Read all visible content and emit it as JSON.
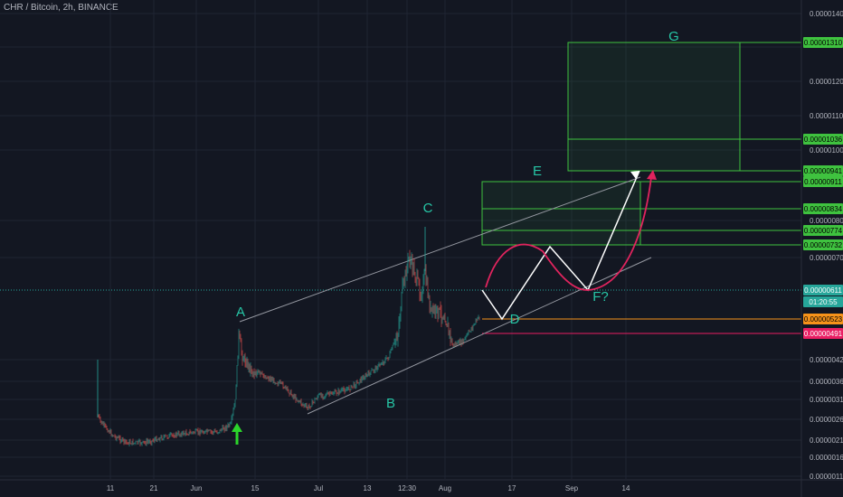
{
  "header": {
    "symbol": "CHR / Bitcoin",
    "interval": "2h",
    "exchange": "BINANCE"
  },
  "colors": {
    "background": "#131722",
    "grid": "#1f2433",
    "axis_text": "#b2b5be",
    "candle_up": "#26a69a",
    "candle_down": "#ef5350",
    "wave_label": "#26c6a6",
    "zone_stroke": "#3fc23f",
    "zone_fill": "rgba(46,160,67,0.10)",
    "projection_white": "#ffffff",
    "projection_pink": "#e0245e",
    "channel_line": "#9598a1",
    "current_price_line": "#26a69a",
    "orange_level": "#f7931a",
    "red_level": "#e91e63",
    "green_arrow": "#2bd52b"
  },
  "chart_data": {
    "type": "candlestick",
    "title": "CHR / Bitcoin, 2h, BINANCE",
    "x_tick_labels": [
      "11",
      "21",
      "Jun",
      "15",
      "Jul",
      "13",
      "12:30",
      "Aug",
      "17",
      "Sep",
      "14"
    ],
    "y_tick_labels": [
      "0.00001400",
      "0.00001200",
      "0.00001100",
      "0.00001000",
      "0.00000800",
      "0.00000700",
      "0.00000420",
      "0.00000360",
      "0.00000310",
      "0.00000260",
      "0.00000210",
      "0.00000160",
      "0.00000110"
    ],
    "y_axis_scale": "log",
    "price_tags": [
      {
        "label": "0.00001310",
        "color": "#3fc23f",
        "text_color": "#000000"
      },
      {
        "label": "0.00001036",
        "color": "#3fc23f",
        "text_color": "#000000"
      },
      {
        "label": "0.00000941",
        "color": "#3fc23f",
        "text_color": "#000000"
      },
      {
        "label": "0.00000911",
        "color": "#3fc23f",
        "text_color": "#000000"
      },
      {
        "label": "0.00000834",
        "color": "#3fc23f",
        "text_color": "#000000"
      },
      {
        "label": "0.00000774",
        "color": "#3fc23f",
        "text_color": "#000000"
      },
      {
        "label": "0.00000732",
        "color": "#3fc23f",
        "text_color": "#000000"
      },
      {
        "label": "0.00000611",
        "color": "#26a69a",
        "text_color": "#ffffff"
      },
      {
        "label": "01:20:55",
        "color": "#26a69a",
        "text_color": "#ffffff"
      },
      {
        "label": "0.00000523",
        "color": "#f7931a",
        "text_color": "#000000"
      },
      {
        "label": "0.00000491",
        "color": "#e91e63",
        "text_color": "#ffffff"
      }
    ],
    "wave_labels": [
      "A",
      "B",
      "C",
      "D",
      "E",
      "F?",
      "G"
    ],
    "annotations": {
      "zones": [
        "E",
        "G"
      ],
      "projection_paths": [
        "white zig-zag D → F? → G",
        "pink curve D → F? → G"
      ],
      "channel": "rising channel through A, B, C",
      "marker": "green up arrow near A"
    }
  }
}
